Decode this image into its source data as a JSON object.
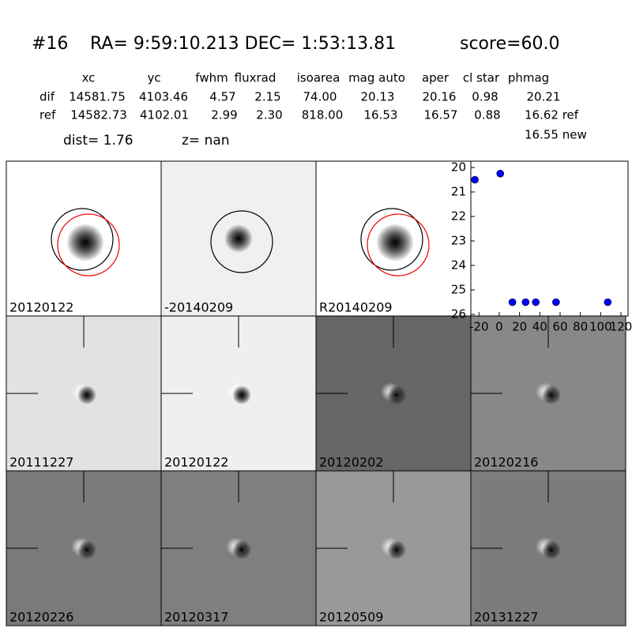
{
  "header": {
    "id": "#16",
    "coords": "RA= 9:59:10.213 DEC= 1:53:13.81",
    "score": "score=60.0"
  },
  "table": {
    "columns": [
      "xc",
      "yc",
      "fwhm",
      "fluxrad",
      "isoarea",
      "mag auto",
      "aper",
      "cl star",
      "phmag"
    ],
    "rows": [
      [
        "dif",
        "14581.75",
        "4103.46",
        "4.57",
        "2.15",
        "74.00",
        "20.13",
        "20.16",
        "0.98",
        "20.21"
      ],
      [
        "ref",
        "14582.73",
        "4102.01",
        "2.99",
        "2.30",
        "818.00",
        "16.53",
        "16.57",
        "0.88",
        "16.62 ref"
      ]
    ],
    "extra": "16.55 new"
  },
  "dist": "dist=  1.76",
  "z": "z=   nan",
  "panels": [
    {
      "label": "20120122"
    },
    {
      "label": "-20140209"
    },
    {
      "label": "R20140209"
    },
    {
      "label": "20111227"
    },
    {
      "label": "20120122",
      "color": "#ff0000"
    },
    {
      "label": "20120202"
    },
    {
      "label": "20120216"
    },
    {
      "label": "20120226"
    },
    {
      "label": "20120317"
    },
    {
      "label": "20120509"
    },
    {
      "label": "20131227"
    }
  ],
  "chart_data": {
    "type": "scatter",
    "color": "#0000ff",
    "x": [
      -24,
      1,
      13,
      26,
      36,
      56,
      107
    ],
    "values": [
      20.5,
      20.25,
      25.5,
      25.5,
      25.5,
      25.5,
      25.5
    ],
    "xlim": [
      -28,
      127
    ],
    "xticks": [
      -20,
      0,
      20,
      40,
      60,
      80,
      100,
      120
    ],
    "ylim": [
      20,
      26
    ],
    "yticks": [
      20,
      21,
      22,
      23,
      24,
      25,
      26
    ],
    "y_inverted": true
  }
}
